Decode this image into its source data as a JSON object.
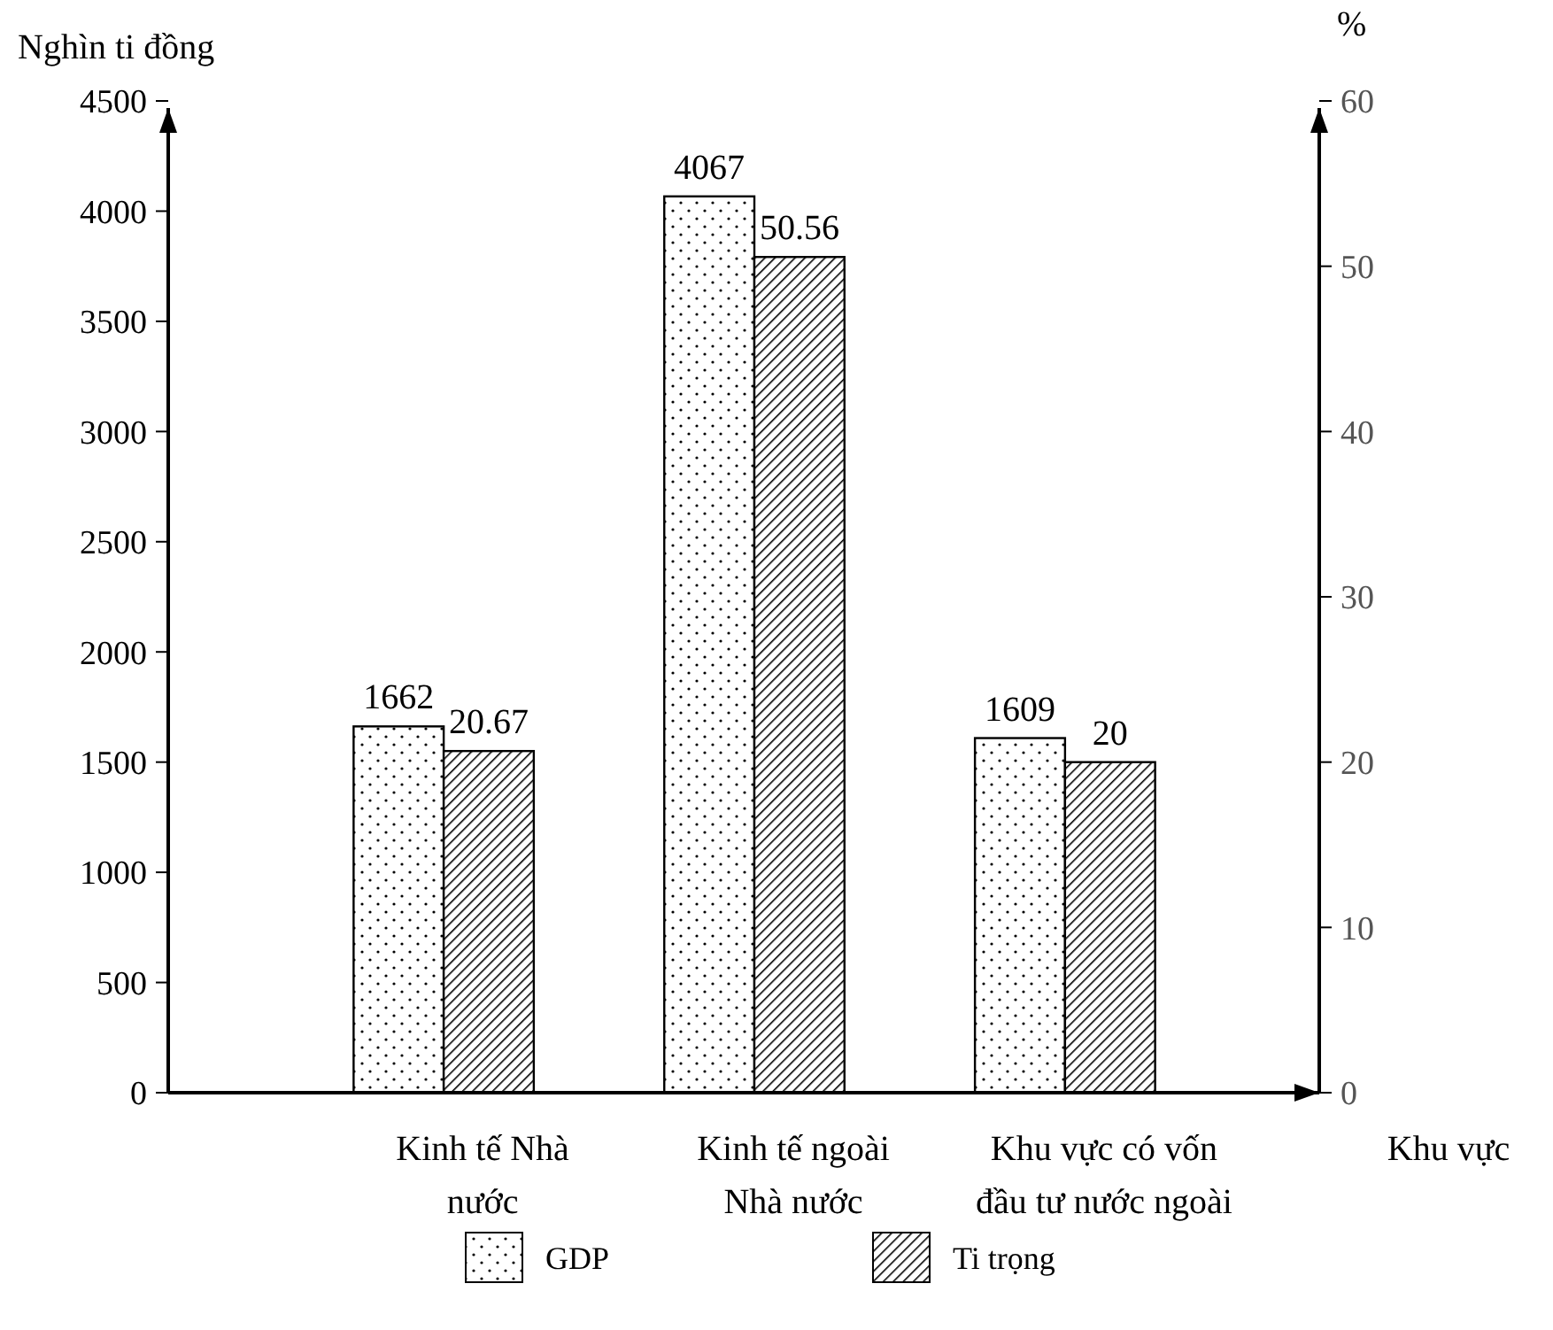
{
  "chart_data": {
    "type": "bar",
    "ylabel": "Nghìn ti đồng",
    "y2label": "%",
    "xlabel": "Khu vực",
    "categories": [
      "Kinh tế Nhà\nnước",
      "Kinh tế ngoài\nNhà nước",
      "Khu vực có vốn\nđầu tư nước ngoài"
    ],
    "series": [
      {
        "name": "GDP",
        "color": "#000000",
        "values": [
          1662,
          4067,
          1609
        ]
      },
      {
        "name": "Ti trọng",
        "color": "#000000",
        "values": [
          20.67,
          50.56,
          20
        ],
        "axis": "y2"
      }
    ],
    "ylim": [
      0,
      4500
    ],
    "yticks": [
      0,
      500,
      1000,
      1500,
      2000,
      2500,
      3000,
      3500,
      4000,
      4500
    ],
    "y2lim": [
      0,
      60
    ],
    "y2ticks": [
      0,
      10,
      20,
      30,
      40,
      50,
      60
    ],
    "data_labels": true,
    "legend": "bottom",
    "grid": false
  }
}
